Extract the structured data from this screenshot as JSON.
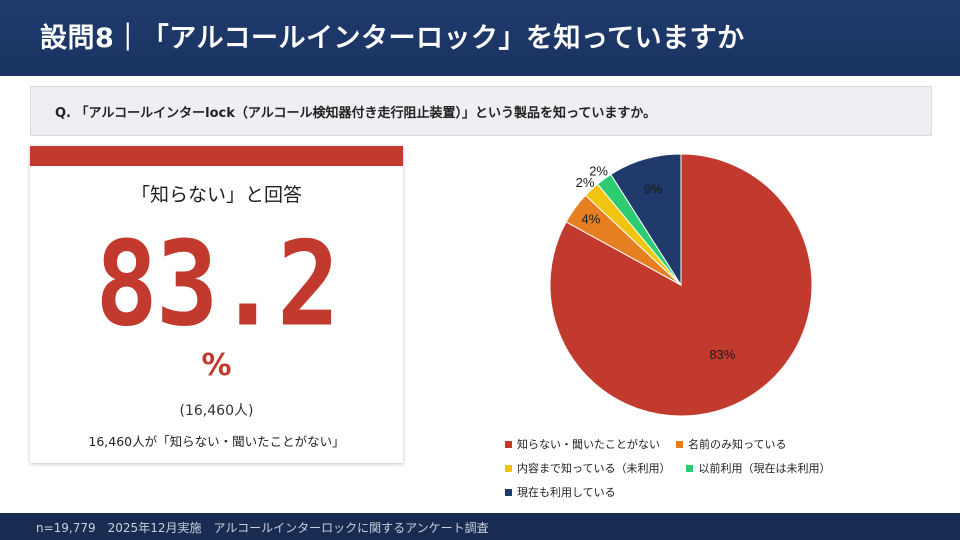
{
  "header": {
    "title": "設問8｜「アルコールインターロック」を知っていますか"
  },
  "question": {
    "text": "Q. 「アルコールインターlock（アルコール検知器付き走行阻止装置）」という製品を知っていますか。"
  },
  "highlight": {
    "label": "「知らない」と回答",
    "value": "83.2",
    "unit": "%",
    "count": "(16,460人)",
    "note": "16,460人が「知らない・聞いたことがない」",
    "accent_color": "#c23a2e"
  },
  "chart_data": {
    "type": "pie",
    "categories": [
      "知らない・聞いたことがない",
      "名前のみ知っている",
      "内容まで知っている（未利用）",
      "以前利用（現在は未利用）",
      "現在も利用している"
    ],
    "values": [
      83,
      4,
      2,
      2,
      9
    ],
    "labels": [
      "83%",
      "4%",
      "2%",
      "2%",
      "9%"
    ],
    "colors": [
      "#c23a2e",
      "#e67e22",
      "#f1c40f",
      "#2ecc71",
      "#1f3a6b"
    ],
    "legend_position": "bottom"
  },
  "footer": {
    "text": "n=19,779　2025年12月実施　アルコールインターロックに関するアンケート調査"
  }
}
